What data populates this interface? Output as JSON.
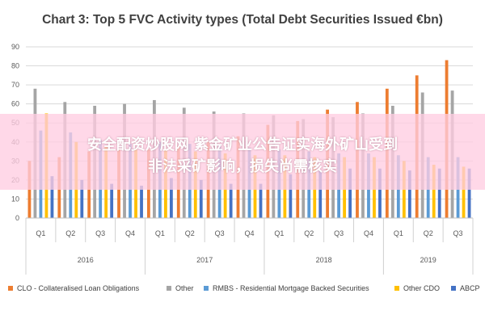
{
  "chart_data": {
    "type": "bar",
    "title": "Chart 3: Top 5 FVC Activity types (Total Debt Securities Issued €bn)",
    "categories": [
      "Q1",
      "Q2",
      "Q3",
      "Q4",
      "Q1",
      "Q2",
      "Q3",
      "Q4",
      "Q1",
      "Q2",
      "Q3",
      "Q4",
      "Q1",
      "Q2",
      "Q3"
    ],
    "years": [
      "2016",
      "2017",
      "2018",
      "2019"
    ],
    "ylim": [
      0,
      90
    ],
    "yticks": [
      "0",
      "10",
      "20",
      "30",
      "40",
      "50",
      "60",
      "70",
      "80",
      "90"
    ],
    "grid": true,
    "legend_position": "bottom",
    "series": [
      {
        "name": "CLO - Collateralised Loan Obligations",
        "color": "#ED7D31",
        "values": [
          30,
          32,
          35,
          36,
          36,
          38,
          40,
          43,
          49,
          51,
          57,
          61,
          68,
          75,
          83
        ]
      },
      {
        "name": "Other",
        "color": "#A5A5A5",
        "values": [
          68,
          61,
          59,
          60,
          62,
          58,
          56,
          55,
          54,
          52,
          53,
          55,
          59,
          66,
          67
        ]
      },
      {
        "name": "RMBS - Residential Mortgage Backed Securities",
        "color": "#5B9BD5",
        "values": [
          46,
          45,
          41,
          39,
          40,
          39,
          38,
          37,
          36,
          35,
          34,
          34,
          33,
          32,
          32
        ]
      },
      {
        "name": "Other CDO",
        "color": "#FFC000",
        "values": [
          55,
          40,
          38,
          36,
          36,
          35,
          34,
          33,
          33,
          32,
          32,
          32,
          30,
          28,
          27
        ]
      },
      {
        "name": "ABCP",
        "color": "#4472C4",
        "values": [
          22,
          20,
          18,
          17,
          21,
          20,
          18,
          18,
          23,
          25,
          26,
          26,
          25,
          26,
          26
        ]
      }
    ]
  },
  "overlay": {
    "line1": "安全配资炒股网 紫金矿业公告证实海外矿山受到",
    "line2": "非法采矿影响，损失尚需核实"
  }
}
